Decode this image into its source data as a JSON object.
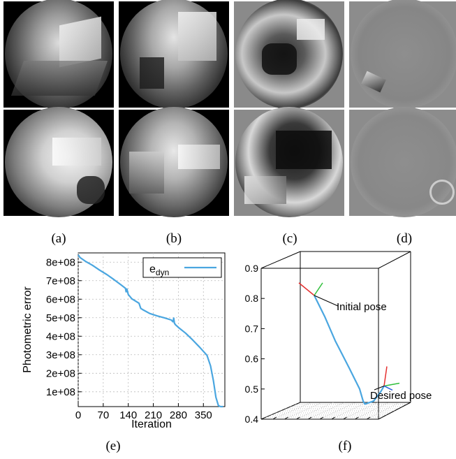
{
  "captions": {
    "a": "(a)",
    "b": "(b)",
    "c": "(c)",
    "d": "(d)",
    "e": "(e)",
    "f": "(f)"
  },
  "chart_data": [
    {
      "type": "line",
      "xlabel": "Iteration",
      "ylabel": "Photometric error",
      "xlim": [
        0,
        410
      ],
      "ylim": [
        20000000,
        850000000
      ],
      "xticks": [
        "0",
        "70",
        "140",
        "210",
        "280",
        "350"
      ],
      "yticks": [
        "1e+08",
        "2e+08",
        "3e+08",
        "4e+08",
        "5e+08",
        "6e+08",
        "7e+08",
        "8e+08"
      ],
      "grid": true,
      "legend": "top-right",
      "series": [
        {
          "name": "e_dyn",
          "name_main": "e",
          "name_sub": "dyn",
          "color": "#4aa6e0",
          "x": [
            0,
            5,
            20,
            40,
            60,
            80,
            100,
            120,
            132,
            134,
            136,
            140,
            150,
            170,
            175,
            180,
            200,
            220,
            240,
            260,
            265,
            267,
            269,
            272,
            280,
            300,
            320,
            340,
            360,
            370,
            378,
            385,
            392,
            398,
            405
          ],
          "y": [
            840000000,
            825000000,
            805000000,
            783000000,
            757000000,
            733000000,
            706000000,
            677000000,
            659000000,
            640000000,
            655000000,
            625000000,
            602000000,
            578000000,
            550000000,
            544000000,
            523000000,
            510000000,
            500000000,
            488000000,
            478000000,
            498000000,
            470000000,
            462000000,
            448000000,
            417000000,
            380000000,
            340000000,
            297000000,
            240000000,
            160000000,
            70000000,
            25000000,
            20000000,
            20000000
          ]
        }
      ]
    },
    {
      "type": "line",
      "xlabel": "",
      "ylabel": "",
      "zlim": [
        0.4,
        0.9
      ],
      "zticks": [
        "0.4",
        "0.5",
        "0.6",
        "0.7",
        "0.8",
        "0.9"
      ],
      "grid": true,
      "annotations": [
        "Initial pose",
        "Desired pose"
      ],
      "series": [
        {
          "color": "#4aa6e0",
          "points": [
            [
              0.0,
              0.81
            ],
            [
              0.03,
              0.74
            ],
            [
              0.06,
              0.66
            ],
            [
              0.1,
              0.57
            ],
            [
              0.13,
              0.5
            ],
            [
              0.14,
              0.46
            ],
            [
              0.145,
              0.45
            ],
            [
              0.17,
              0.46
            ],
            [
              0.19,
              0.49
            ],
            [
              0.2,
              0.51
            ]
          ]
        }
      ]
    }
  ]
}
